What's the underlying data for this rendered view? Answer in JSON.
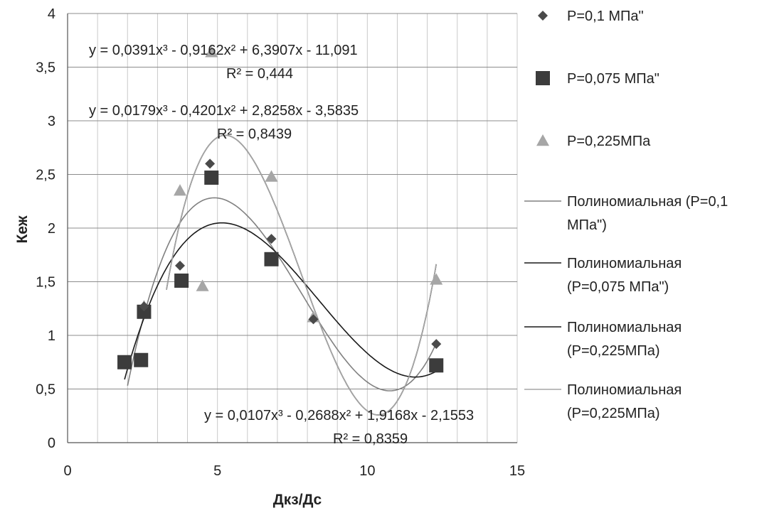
{
  "chart_data": {
    "type": "scatter",
    "xlabel": "Дкз/Дс",
    "ylabel": "Кеж",
    "xlim": [
      0,
      15
    ],
    "ylim": [
      0,
      4
    ],
    "x_ticks": [
      "0",
      "5",
      "10",
      "15"
    ],
    "y_ticks": [
      "0",
      "0,5",
      "1",
      "1,5",
      "2",
      "2,5",
      "3",
      "3,5",
      "4"
    ],
    "grid": {
      "horizontal": true,
      "vertical_minor": true
    },
    "legend_position": "right",
    "series": [
      {
        "name": "P=0,1 МПа\"",
        "marker": "diamond",
        "color": "#4a4a4a",
        "points": [
          [
            2.55,
            1.27
          ],
          [
            3.75,
            1.65
          ],
          [
            4.75,
            2.6
          ],
          [
            6.8,
            1.9
          ],
          [
            8.2,
            1.15
          ],
          [
            12.3,
            0.92
          ]
        ]
      },
      {
        "name": "P=0,075 МПа\"",
        "marker": "square",
        "color": "#3c3c3c",
        "points": [
          [
            1.9,
            0.75
          ],
          [
            2.45,
            0.77
          ],
          [
            2.55,
            1.22
          ],
          [
            3.8,
            1.51
          ],
          [
            4.8,
            2.47
          ],
          [
            6.8,
            1.71
          ],
          [
            12.3,
            0.72
          ]
        ]
      },
      {
        "name": "P=0,225МПа",
        "marker": "triangle",
        "color": "#a6a6a6",
        "points": [
          [
            2.55,
            1.27
          ],
          [
            3.75,
            2.35
          ],
          [
            4.5,
            1.46
          ],
          [
            4.8,
            3.64
          ],
          [
            6.8,
            2.48
          ],
          [
            8.2,
            1.17
          ],
          [
            12.3,
            1.52
          ]
        ]
      }
    ],
    "trendlines": [
      {
        "name": "Полиномиальная (P=0,1 МПа\")",
        "color": "#808080",
        "coeffs": [
          0.0179,
          -0.4201,
          2.8258,
          -3.5835
        ],
        "x_range": [
          2.0,
          12.3
        ]
      },
      {
        "name": "Полиномиальная (P=0,075 МПа\")",
        "color": "#1a1a1a",
        "coeffs": [
          0.0107,
          -0.2688,
          1.9168,
          -2.1553
        ],
        "x_range": [
          1.9,
          12.3
        ]
      },
      {
        "name": "Полиномиальная (P=0,225МПа)",
        "color": "#1a1a1a",
        "coeffs": [
          0.0391,
          -0.9162,
          6.3907,
          -11.091
        ],
        "x_range": [
          3.3,
          12.3
        ]
      },
      {
        "name": "Полиномиальная (P=0,225МПа)",
        "color": "#a6a6a6",
        "coeffs": [
          0.0391,
          -0.9162,
          6.3907,
          -11.091
        ],
        "x_range": [
          3.3,
          12.3
        ]
      }
    ],
    "annotations": [
      {
        "equation": "y = 0,0391x³ - 0,9162x² + 6,3907x - 11,091",
        "r2": "R² = 0,444"
      },
      {
        "equation": "y = 0,0179x³ - 0,4201x² + 2,8258x - 3,5835",
        "r2": "R² = 0,8439"
      },
      {
        "equation": "y = 0,0107x³ - 0,2688x² + 1,9168x - 2,1553",
        "r2": "R² = 0,8359"
      }
    ],
    "legend": [
      {
        "label_lines": [
          "P=0,1 МПа\""
        ],
        "symbol": "diamond",
        "color": "#4a4a4a"
      },
      {
        "label_lines": [
          "P=0,075 МПа\""
        ],
        "symbol": "square",
        "color": "#3c3c3c"
      },
      {
        "label_lines": [
          "P=0,225МПа"
        ],
        "symbol": "triangle",
        "color": "#a6a6a6"
      },
      {
        "label_lines": [
          "Полиномиальная (P=0,1",
          "МПа\")"
        ],
        "symbol": "line",
        "color": "#808080"
      },
      {
        "label_lines": [
          "Полиномиальная",
          "(P=0,075 МПа\")"
        ],
        "symbol": "line",
        "color": "#1a1a1a"
      },
      {
        "label_lines": [
          "Полиномиальная",
          "(P=0,225МПа)"
        ],
        "symbol": "line",
        "color": "#1a1a1a"
      },
      {
        "label_lines": [
          "Полиномиальная",
          "(P=0,225МПа)"
        ],
        "symbol": "line",
        "color": "#a6a6a6"
      }
    ]
  }
}
